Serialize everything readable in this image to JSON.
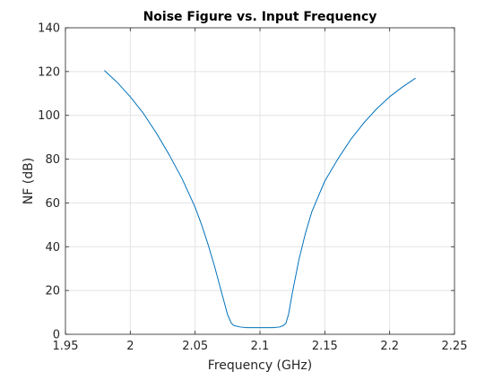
{
  "chart_data": {
    "type": "line",
    "title": "Noise Figure vs. Input Frequency",
    "xlabel": "Frequency (GHz)",
    "ylabel": "NF (dB)",
    "xlim": [
      1.95,
      2.25
    ],
    "ylim": [
      0,
      140
    ],
    "grid": true,
    "xticks": [
      "1.95",
      "2",
      "2.05",
      "2.1",
      "2.15",
      "2.2",
      "2.25"
    ],
    "yticks": [
      "0",
      "20",
      "40",
      "60",
      "80",
      "100",
      "120",
      "140"
    ],
    "series": [
      {
        "color": "#0072BD",
        "x": [
          1.98,
          1.99,
          2.0,
          2.01,
          2.02,
          2.03,
          2.04,
          2.05,
          2.055,
          2.06,
          2.065,
          2.07,
          2.075,
          2.078,
          2.08,
          2.085,
          2.09,
          2.095,
          2.1,
          2.105,
          2.11,
          2.115,
          2.118,
          2.12,
          2.122,
          2.125,
          2.13,
          2.135,
          2.14,
          2.15,
          2.16,
          2.17,
          2.18,
          2.19,
          2.2,
          2.21,
          2.22
        ],
        "y": [
          120.5,
          115,
          108.5,
          101,
          92,
          82,
          71,
          58,
          50,
          41,
          31,
          20,
          9,
          5,
          4,
          3.3,
          3,
          3,
          3,
          3,
          3,
          3.3,
          4,
          5,
          9,
          19,
          34,
          46,
          56,
          70,
          80,
          89,
          96.5,
          103,
          108.5,
          113,
          117
        ]
      }
    ]
  }
}
